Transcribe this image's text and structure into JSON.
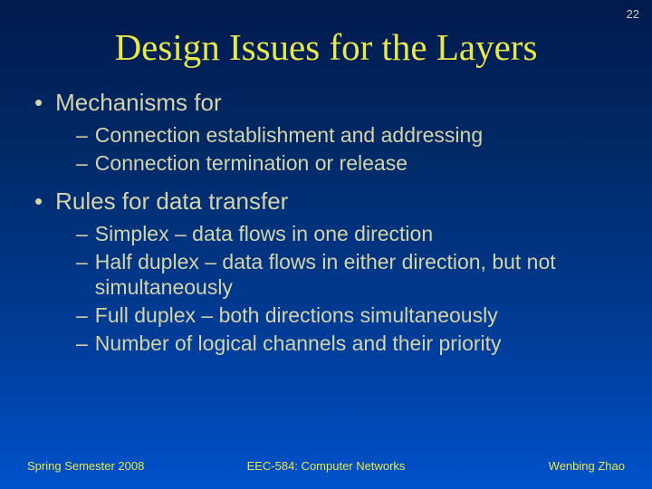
{
  "page_number": "22",
  "title": "Design Issues for the Layers",
  "sections": [
    {
      "heading": "Mechanisms for",
      "items": [
        "Connection establishment and addressing",
        "Connection termination or release"
      ]
    },
    {
      "heading": "Rules for data transfer",
      "items": [
        "Simplex – data flows in one direction",
        "Half duplex – data flows in either direction, but not simultaneously",
        "Full duplex – both directions simultaneously",
        "Number of logical channels and their priority"
      ]
    }
  ],
  "footer": {
    "left": "Spring Semester 2008",
    "center": "EEC-584: Computer Networks",
    "right": "Wenbing Zhao"
  },
  "style": {
    "bg_gradient_top": "#001a4d",
    "bg_gradient_bottom": "#0052cc",
    "title_color": "#e8e84a",
    "body_color": "#d4d4a8",
    "footer_color": "#e8e84a",
    "title_fontsize": 41,
    "l1_fontsize": 26,
    "l2_fontsize": 23,
    "footer_fontsize": 13
  }
}
